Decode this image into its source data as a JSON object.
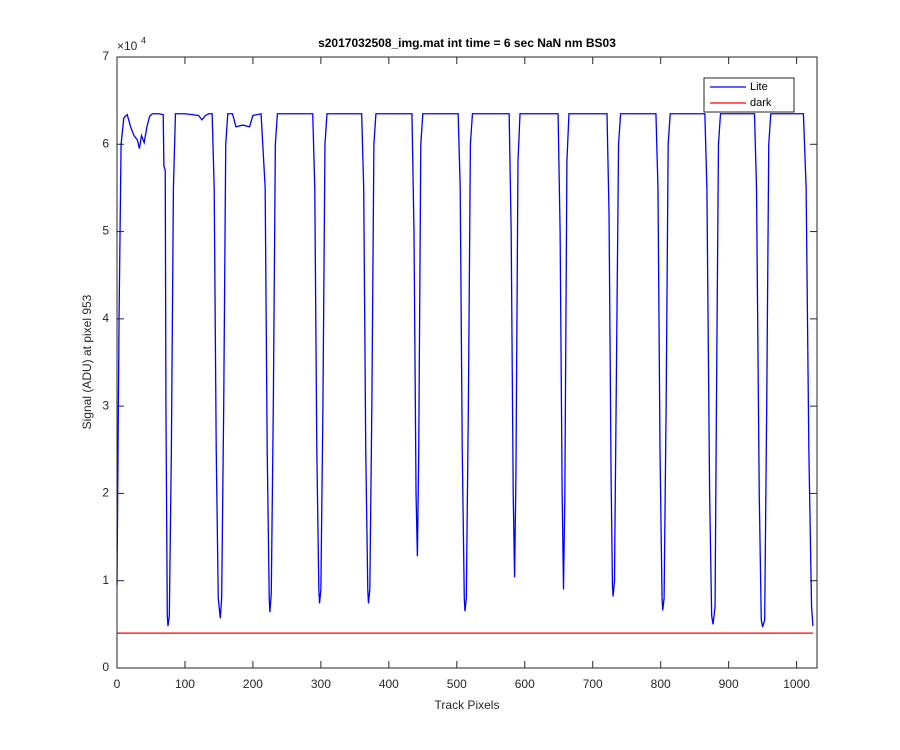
{
  "chart_data": {
    "type": "line",
    "title": "s2017032508_img.mat int time = 6 sec  NaN nm BS03",
    "x_label": "Track Pixels",
    "y_label": "Signal (ADU) at pixel 953",
    "y_exponent": {
      "base": "×10",
      "power": "4"
    },
    "xlim": [
      0,
      1030
    ],
    "ylim": [
      0,
      70000
    ],
    "xticks": [
      0,
      100,
      200,
      300,
      400,
      500,
      600,
      700,
      800,
      900,
      1000
    ],
    "yticks": [
      {
        "value": 0,
        "label": "0"
      },
      {
        "value": 10000,
        "label": "1"
      },
      {
        "value": 20000,
        "label": "2"
      },
      {
        "value": 30000,
        "label": "3"
      },
      {
        "value": 40000,
        "label": "4"
      },
      {
        "value": 50000,
        "label": "5"
      },
      {
        "value": 60000,
        "label": "6"
      },
      {
        "value": 70000,
        "label": "7"
      }
    ],
    "legend": "northeast",
    "series": [
      {
        "name": "Lite",
        "color": "#0000ff",
        "x": [
          0,
          3,
          6,
          10,
          15,
          20,
          25,
          30,
          33,
          36,
          40,
          44,
          48,
          52,
          56,
          62,
          68,
          69,
          71,
          72,
          74,
          75,
          77,
          80,
          83,
          86,
          100,
          120,
          125,
          130,
          135,
          140,
          143,
          146,
          149,
          152,
          154,
          157,
          160,
          163,
          170,
          175,
          185,
          195,
          200,
          212,
          218,
          221,
          224,
          225,
          227,
          230,
          233,
          236,
          288,
          291,
          294,
          297,
          298,
          300,
          303,
          306,
          309,
          360,
          363,
          366,
          369,
          370,
          372,
          375,
          378,
          381,
          434,
          437,
          440,
          442,
          444,
          447,
          450,
          502,
          505,
          508,
          511,
          512,
          514,
          517,
          520,
          523,
          577,
          580,
          583,
          585,
          587,
          590,
          593,
          649,
          652,
          655,
          657,
          659,
          662,
          665,
          721,
          724,
          727,
          729,
          730,
          732,
          735,
          738,
          741,
          793,
          796,
          799,
          802,
          803,
          805,
          808,
          811,
          814,
          865,
          868,
          872,
          875,
          877,
          880,
          882,
          885,
          888,
          938,
          941,
          945,
          948,
          950,
          953,
          956,
          959,
          962,
          1010,
          1014,
          1018,
          1022,
          1024
        ],
        "values": [
          9500,
          40000,
          60000,
          63000,
          63400,
          62000,
          61000,
          60500,
          59500,
          61000,
          60200,
          62000,
          63200,
          63500,
          63500,
          63500,
          63400,
          57500,
          57000,
          30000,
          6000,
          4800,
          6000,
          25000,
          55000,
          63500,
          63500,
          63300,
          62800,
          63300,
          63500,
          63500,
          55000,
          25000,
          8000,
          5700,
          8000,
          30000,
          60000,
          63500,
          63500,
          62000,
          62200,
          62000,
          63300,
          63500,
          55000,
          25000,
          8000,
          6400,
          8500,
          30000,
          60000,
          63500,
          63500,
          55000,
          25000,
          9000,
          7400,
          9000,
          30000,
          60000,
          63500,
          63500,
          55000,
          25000,
          9000,
          7400,
          9000,
          30000,
          60000,
          63500,
          63500,
          50000,
          20000,
          12800,
          25000,
          60000,
          63500,
          63500,
          55000,
          25000,
          8000,
          6500,
          8000,
          30000,
          60000,
          63500,
          63500,
          50000,
          20000,
          10400,
          22000,
          58000,
          63500,
          63500,
          50000,
          20000,
          9000,
          20000,
          58000,
          63500,
          63500,
          52000,
          22000,
          9500,
          8200,
          10000,
          35000,
          60000,
          63500,
          63500,
          55000,
          25000,
          8000,
          6600,
          8000,
          30000,
          60000,
          63500,
          63500,
          55000,
          20000,
          6000,
          5000,
          7000,
          30000,
          60000,
          63500,
          63500,
          55000,
          20000,
          5500,
          4700,
          5500,
          30000,
          60000,
          63500,
          63500,
          55000,
          25000,
          7000,
          4800
        ]
      },
      {
        "name": "dark",
        "color": "#ff0000",
        "x": [
          0,
          256,
          512,
          768,
          1024
        ],
        "values": [
          4000,
          4000,
          4000,
          4000,
          4000
        ]
      }
    ]
  }
}
